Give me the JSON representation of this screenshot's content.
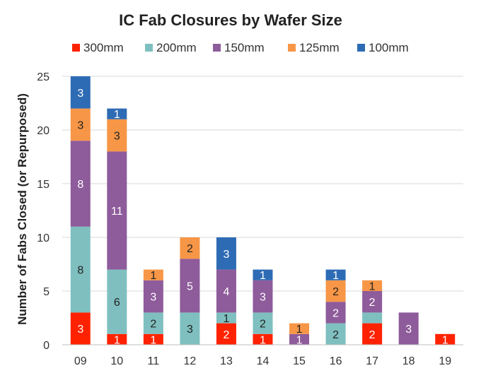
{
  "chart_data": {
    "type": "bar",
    "stacked": true,
    "title": "IC Fab Closures by Wafer Size",
    "xlabel": "",
    "ylabel": "Number of Fabs Closed (or Repurposed)",
    "ylim": [
      0,
      25
    ],
    "yticks": [
      0,
      5,
      10,
      15,
      20,
      25
    ],
    "grid": true,
    "legend_position": "top",
    "categories": [
      "09",
      "10",
      "11",
      "12",
      "13",
      "14",
      "15",
      "16",
      "17",
      "18",
      "19"
    ],
    "series": [
      {
        "name": "300mm",
        "color": "#ff2200",
        "label_color": "#ffffff",
        "values": [
          3,
          1,
          1,
          0,
          2,
          1,
          0,
          0,
          2,
          0,
          1
        ]
      },
      {
        "name": "200mm",
        "color": "#7fbfbf",
        "label_color": "#222222",
        "values": [
          8,
          6,
          2,
          3,
          1,
          2,
          0,
          2,
          1,
          0,
          0
        ]
      },
      {
        "name": "150mm",
        "color": "#8e5b9b",
        "label_color": "#ffffff",
        "values": [
          8,
          11,
          3,
          5,
          4,
          3,
          1,
          2,
          2,
          3,
          0
        ]
      },
      {
        "name": "125mm",
        "color": "#f79646",
        "label_color": "#222222",
        "values": [
          3,
          3,
          1,
          2,
          0,
          0,
          1,
          2,
          1,
          0,
          0
        ]
      },
      {
        "name": "100mm",
        "color": "#2e6bb5",
        "label_color": "#ffffff",
        "values": [
          3,
          1,
          0,
          0,
          3,
          1,
          0,
          1,
          0,
          0,
          0
        ]
      }
    ],
    "data_labels": [
      [
        3,
        8,
        8,
        3,
        3
      ],
      [
        1,
        6,
        11,
        3,
        1
      ],
      [
        1,
        2,
        3,
        1,
        null
      ],
      [
        null,
        3,
        5,
        2,
        null
      ],
      [
        2,
        1,
        4,
        null,
        3
      ],
      [
        1,
        2,
        3,
        null,
        1
      ],
      [
        null,
        null,
        1,
        1,
        null
      ],
      [
        null,
        2,
        2,
        2,
        1
      ],
      [
        2,
        null,
        2,
        1,
        null
      ],
      [
        null,
        null,
        3,
        null,
        null
      ],
      [
        1,
        null,
        null,
        null,
        null
      ]
    ]
  }
}
